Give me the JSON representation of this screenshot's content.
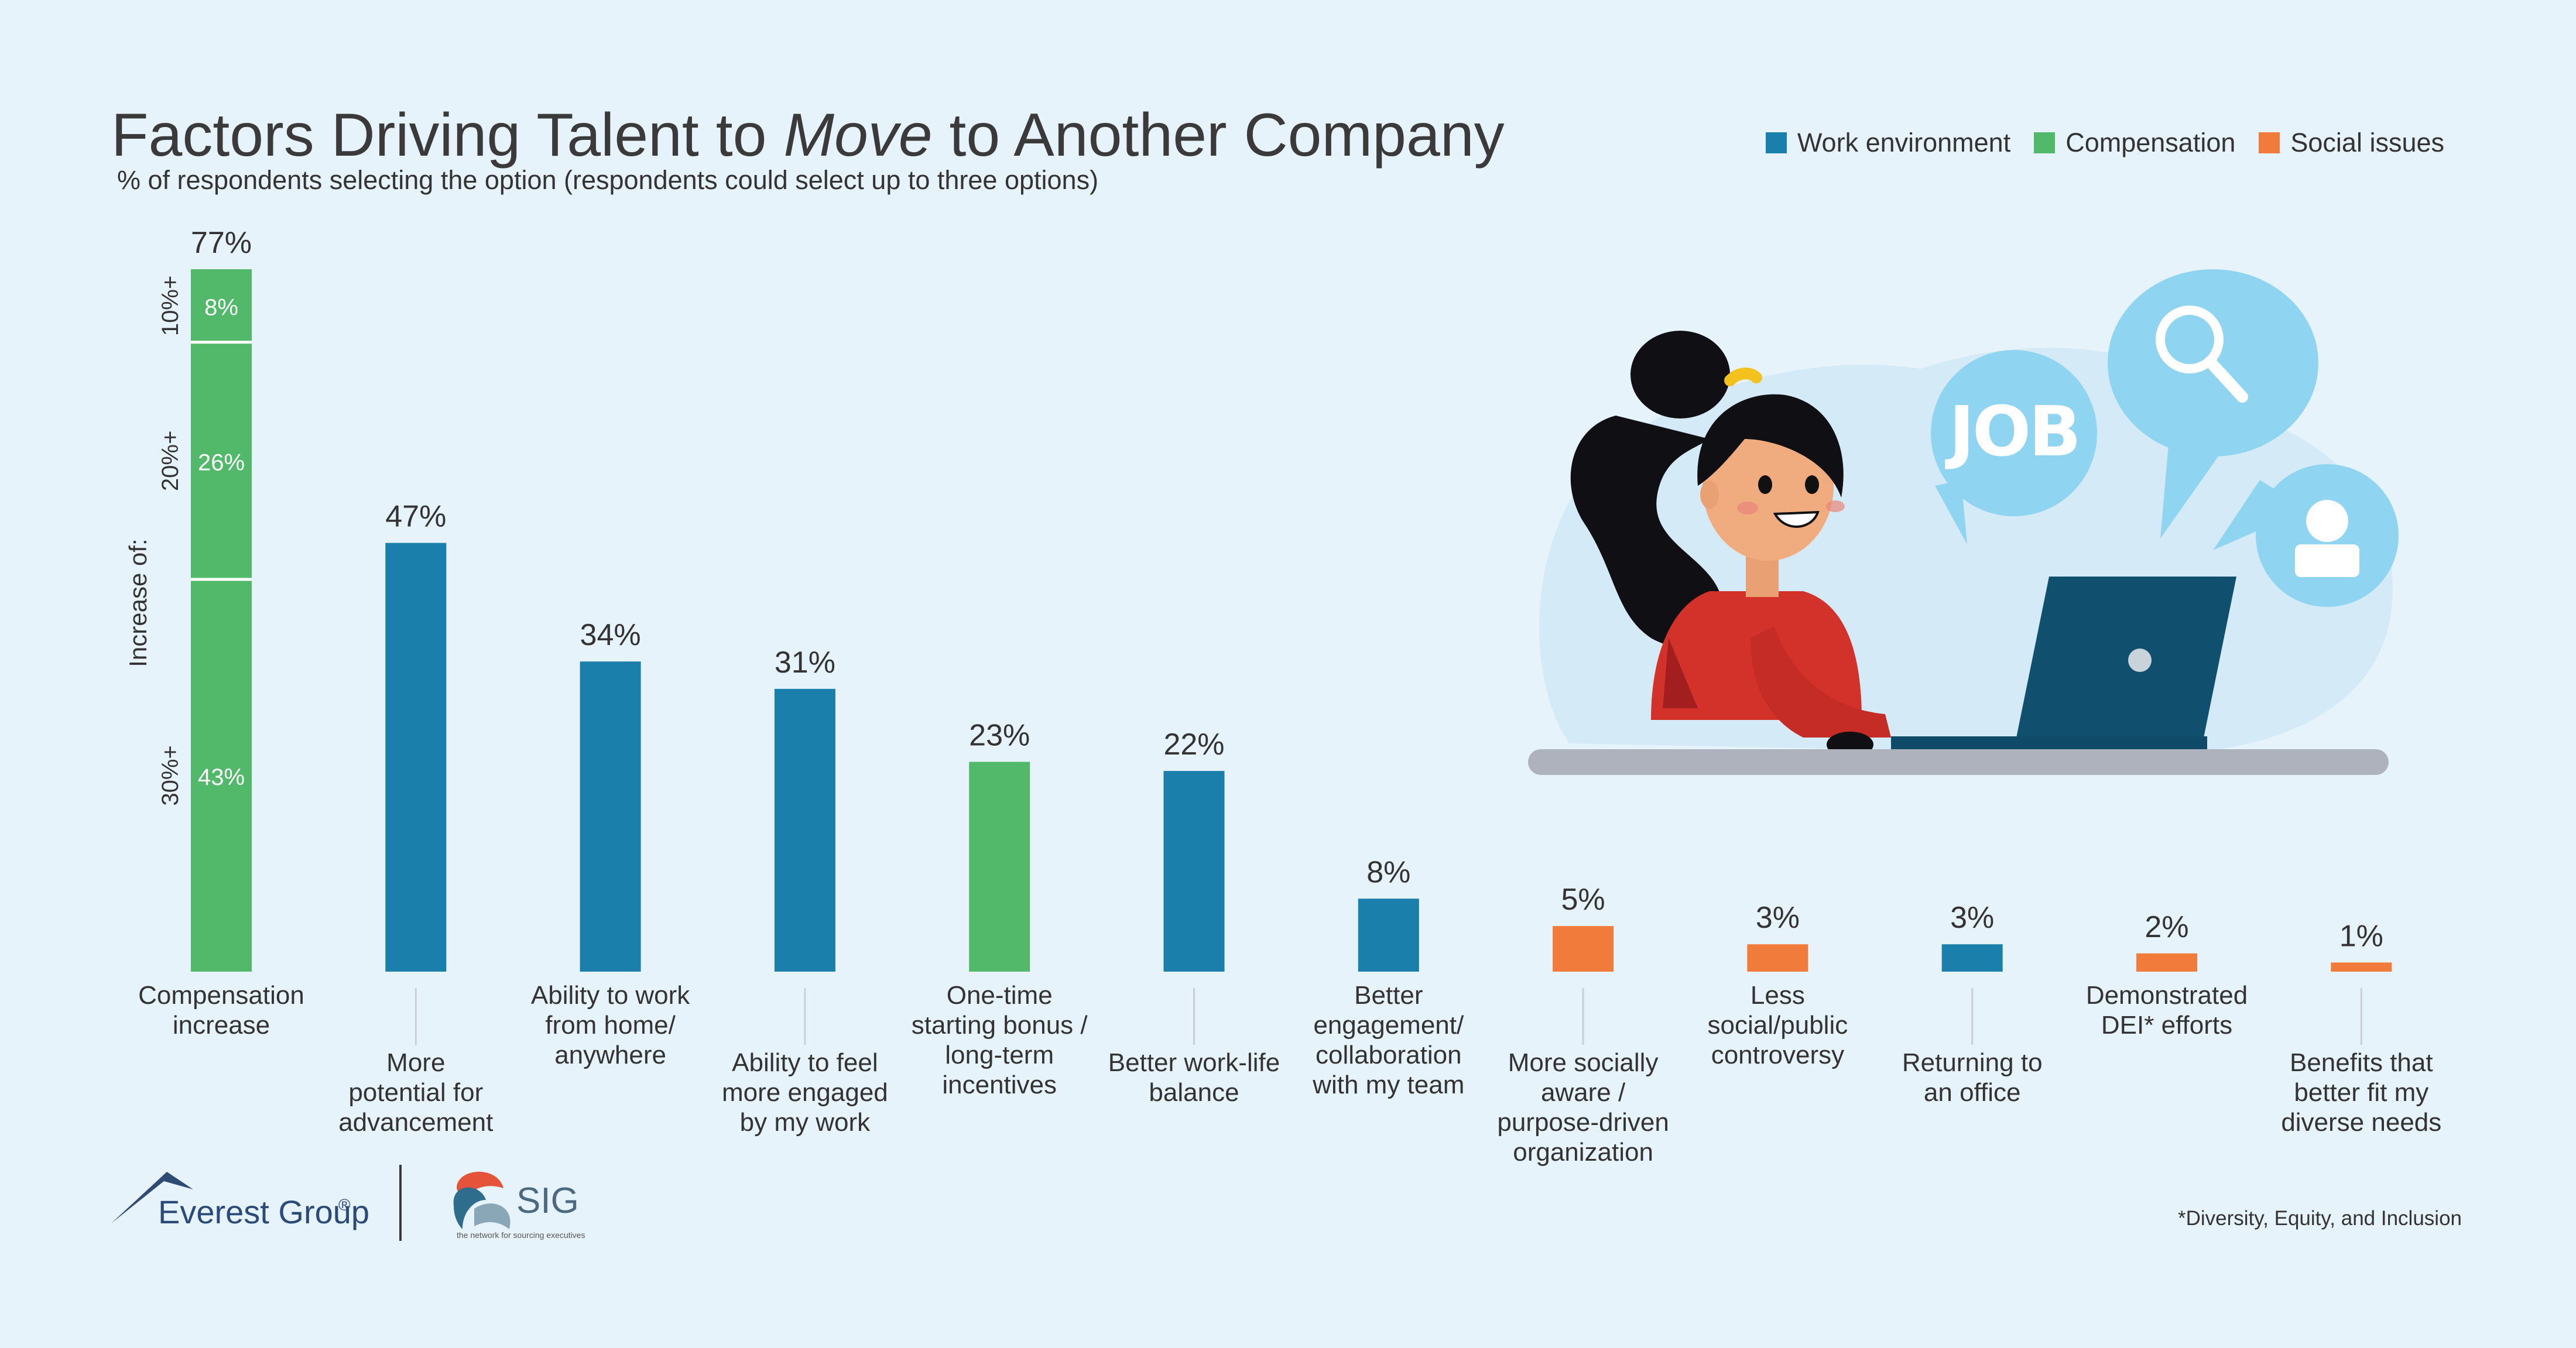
{
  "title": {
    "before": "Factors Driving Talent to ",
    "emph": "Move",
    "after": " to Another Company"
  },
  "subtitle": "% of respondents selecting the option (respondents could select up to three options)",
  "legend": [
    {
      "label": "Work environment",
      "color": "#1a7faa"
    },
    {
      "label": "Compensation",
      "color": "#52b96a"
    },
    {
      "label": "Social issues",
      "color": "#f07b3a"
    }
  ],
  "colors": {
    "work": "#1a7faa",
    "comp": "#52b96a",
    "social": "#f07b3a",
    "background": "#e7f3fb"
  },
  "chart_data": {
    "type": "bar",
    "ylim": [
      0,
      77
    ],
    "grid": false,
    "legend_position": "top-right",
    "categories": [
      "Compensation increase",
      "More potential for advancement",
      "Ability to work from home/ anywhere",
      "Ability to feel more engaged by my work",
      "One-time starting bonus / long-term incentives",
      "Better work-life balance",
      "Better engagement/ collaboration with my team",
      "More socially aware / purpose-driven organization",
      "Less social/public controversy",
      "Returning to an office",
      "Demonstrated DEI* efforts",
      "Benefits that better fit my diverse needs"
    ],
    "label_lines": [
      [
        "Compensation",
        "increase"
      ],
      [
        "More",
        "potential for",
        "advancement"
      ],
      [
        "Ability to work",
        "from home/",
        "anywhere"
      ],
      [
        "Ability to feel",
        "more engaged",
        "by my work"
      ],
      [
        "One-time",
        "starting bonus /",
        "long-term",
        "incentives"
      ],
      [
        "Better work-life",
        "balance"
      ],
      [
        "Better",
        "engagement/",
        "collaboration",
        "with my team"
      ],
      [
        "More socially",
        "aware /",
        "purpose-driven",
        "organization"
      ],
      [
        "Less",
        "social/public",
        "controversy"
      ],
      [
        "Returning to",
        "an office"
      ],
      [
        "Demonstrated",
        "DEI* efforts"
      ],
      [
        "Benefits that",
        "better fit my",
        "diverse needs"
      ]
    ],
    "values": [
      77,
      47,
      34,
      31,
      23,
      22,
      8,
      5,
      3,
      3,
      2,
      1
    ],
    "value_labels": [
      "77%",
      "47%",
      "34%",
      "31%",
      "23%",
      "22%",
      "8%",
      "5%",
      "3%",
      "3%",
      "2%",
      "1%"
    ],
    "groups": [
      "comp",
      "work",
      "work",
      "work",
      "comp",
      "work",
      "work",
      "social",
      "social",
      "work",
      "social",
      "social"
    ],
    "stack": {
      "axis_label": "Increase of:",
      "segments": [
        {
          "range_label": "30%+",
          "value": 43,
          "value_label": "43%"
        },
        {
          "range_label": "20%+",
          "value": 26,
          "value_label": "26%"
        },
        {
          "range_label": "10%+",
          "value": 8,
          "value_label": "8%"
        }
      ]
    }
  },
  "illustration": {
    "job_text": "JOB"
  },
  "logos": {
    "everest": "Everest Group",
    "everest_mark": "®",
    "sig": "SIG",
    "sig_tagline": "the network for sourcing executives"
  },
  "footnote": "*Diversity, Equity, and Inclusion"
}
